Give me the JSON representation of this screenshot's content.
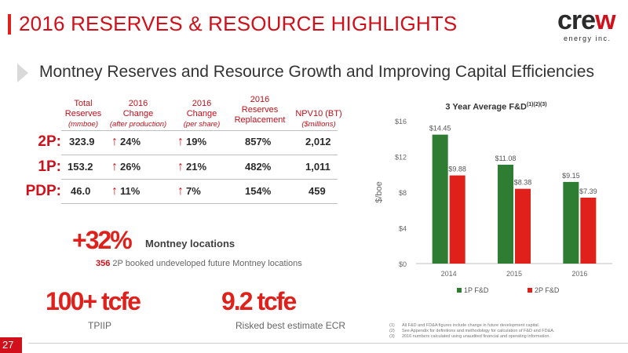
{
  "title": "2016 RESERVES & RESOURCE HIGHLIGHTS",
  "logo": {
    "word_start": "cre",
    "word_accent": "w",
    "tagline": "energy inc."
  },
  "subheading": "Montney Reserves and Resource Growth and Improving Capital Efficiencies",
  "table": {
    "headers": [
      {
        "line1": "Total",
        "line2": "Reserves",
        "line3": "(mmboe)"
      },
      {
        "line1": "2016",
        "line2": "Change",
        "line3": "(after production)"
      },
      {
        "line1": "2016",
        "line2": "Change",
        "line3": "(per share)"
      },
      {
        "line1": "2016",
        "line2": "Reserves",
        "line3": "Replacement"
      },
      {
        "line1": "NPV10 (BT)",
        "line2": "($millions)"
      }
    ],
    "rows": [
      {
        "label": "2P:",
        "total": "323.9",
        "change_after": "24%",
        "change_share": "19%",
        "replacement": "857%",
        "npv": "2,012"
      },
      {
        "label": "1P:",
        "total": "153.2",
        "change_after": "26%",
        "change_share": "21%",
        "replacement": "482%",
        "npv": "1,011"
      },
      {
        "label": "PDP:",
        "total": "46.0",
        "change_after": "11%",
        "change_share": "7%",
        "replacement": "154%",
        "npv": "459"
      }
    ]
  },
  "arrow_glyph": "↑",
  "locations": {
    "big": "+32%",
    "label": "Montney locations",
    "count": "356",
    "note": "2P booked undeveloped future Montney locations"
  },
  "tpiip": {
    "big": "100+ tcfe",
    "label": "TPIIP"
  },
  "ecr": {
    "big": "9.2 tcfe",
    "label": "Risked best estimate ECR"
  },
  "chart_data": {
    "type": "bar",
    "title": "3 Year Average F&D",
    "title_sup": "(1)(2)(3)",
    "categories": [
      "2014",
      "2015",
      "2016"
    ],
    "series": [
      {
        "name": "1P F&D",
        "color": "#2f7d32",
        "values": [
          14.45,
          11.08,
          9.15
        ],
        "labels": [
          "$14.45",
          "$11.08",
          "$9.15"
        ]
      },
      {
        "name": "2P F&D",
        "color": "#e0201b",
        "values": [
          9.88,
          8.38,
          7.39
        ],
        "labels": [
          "$9.88",
          "$8.38",
          "$7.39"
        ]
      }
    ],
    "ylabel": "$/boe",
    "ylim": [
      0,
      16
    ],
    "yticks": [
      0,
      4,
      8,
      12,
      16
    ],
    "ytick_labels": [
      "$0",
      "$4",
      "$8",
      "$12",
      "$16"
    ],
    "grid": false,
    "legend": "bottom"
  },
  "footnotes": [
    {
      "num": "(1)",
      "text": "All F&D and FD&A figures include change in future development capital."
    },
    {
      "num": "(2)",
      "text": "See Appendix for definitions and methodology for calculation of F&D and FD&A."
    },
    {
      "num": "(3)",
      "text": "2016 numbers calculated using unaudited financial and operating information."
    }
  ],
  "page_number": "27"
}
